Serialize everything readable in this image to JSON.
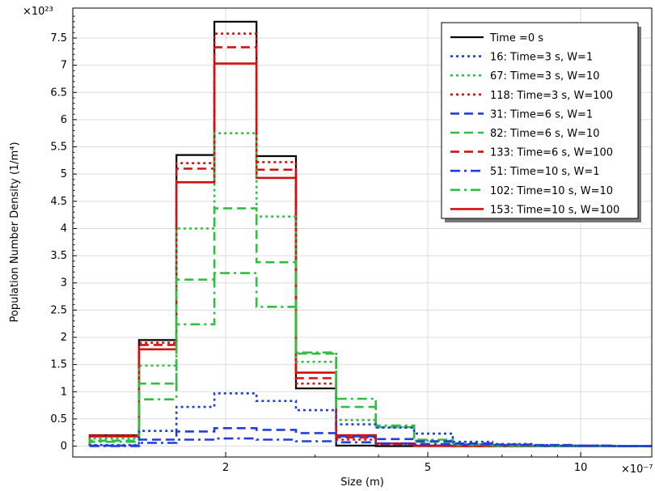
{
  "chart_data": {
    "type": "line",
    "step": true,
    "xlabel": "Size (m)",
    "ylabel": "Population Number Density (1/m⁴)",
    "x_scale": "log",
    "x_multiplier": "×10⁻⁷",
    "y_multiplier": "×10²³",
    "xlim": [
      1.0,
      13.8
    ],
    "ylim": [
      -0.2,
      8.05
    ],
    "x_ticks": [
      {
        "value": 2,
        "label": "2"
      },
      {
        "value": 5,
        "label": "5"
      },
      {
        "value": 10,
        "label": "10"
      }
    ],
    "y_ticks": [
      {
        "value": 0,
        "label": "0"
      },
      {
        "value": 0.5,
        "label": "0.5"
      },
      {
        "value": 1,
        "label": "1"
      },
      {
        "value": 1.5,
        "label": "1.5"
      },
      {
        "value": 2,
        "label": "2"
      },
      {
        "value": 2.5,
        "label": "2.5"
      },
      {
        "value": 3,
        "label": "3"
      },
      {
        "value": 3.5,
        "label": "3.5"
      },
      {
        "value": 4,
        "label": "4"
      },
      {
        "value": 4.5,
        "label": "4.5"
      },
      {
        "value": 5,
        "label": "5"
      },
      {
        "value": 5.5,
        "label": "5.5"
      },
      {
        "value": 6,
        "label": "6"
      },
      {
        "value": 6.5,
        "label": "6.5"
      },
      {
        "value": 7,
        "label": "7"
      },
      {
        "value": 7.5,
        "label": "7.5"
      }
    ],
    "grid": true,
    "legend_position": "top-right",
    "bin_edges": [
      1.08,
      1.35,
      1.6,
      1.9,
      2.3,
      2.75,
      3.3,
      3.95,
      4.7,
      5.6,
      6.7,
      8.0,
      9.6,
      11.5,
      13.8
    ],
    "series": [
      {
        "name": "Time =0 s",
        "color": "#000000",
        "dash": "solid",
        "values": [
          0.2,
          1.95,
          5.35,
          7.8,
          5.33,
          1.06,
          0.01,
          0.0,
          0.0,
          0.0,
          0.0,
          0.0,
          0.0,
          0.0
        ]
      },
      {
        "name": "16: Time=3 s, W=1",
        "color": "#1f3fdc",
        "dash": "dot",
        "values": [
          0.02,
          0.28,
          0.72,
          0.97,
          0.83,
          0.66,
          0.4,
          0.34,
          0.23,
          0.08,
          0.04,
          0.02,
          0.01,
          0.0
        ]
      },
      {
        "name": "67: Time=3 s, W=10",
        "color": "#2fbf40",
        "dash": "dot",
        "values": [
          0.14,
          1.48,
          4.0,
          5.75,
          4.22,
          1.55,
          0.48,
          0.35,
          0.1,
          0.03,
          0.01,
          0.0,
          0.0,
          0.0
        ]
      },
      {
        "name": "118: Time=3 s, W=100",
        "color": "#d40f0f",
        "dash": "dot",
        "values": [
          0.2,
          1.9,
          5.2,
          7.58,
          5.22,
          1.15,
          0.12,
          0.03,
          0.01,
          0.0,
          0.0,
          0.0,
          0.0,
          0.0
        ]
      },
      {
        "name": "31: Time=6 s, W=1",
        "color": "#1f3fdc",
        "dash": "dash",
        "values": [
          0.01,
          0.12,
          0.27,
          0.33,
          0.3,
          0.24,
          0.18,
          0.13,
          0.09,
          0.05,
          0.03,
          0.02,
          0.01,
          0.0
        ]
      },
      {
        "name": "82: Time=6 s, W=10",
        "color": "#2fbf40",
        "dash": "dash",
        "values": [
          0.1,
          1.15,
          3.06,
          4.37,
          3.38,
          1.7,
          0.72,
          0.35,
          0.08,
          0.02,
          0.01,
          0.0,
          0.0,
          0.0
        ]
      },
      {
        "name": "133: Time=6 s, W=100",
        "color": "#d40f0f",
        "dash": "dash",
        "values": [
          0.19,
          1.86,
          5.1,
          7.33,
          5.08,
          1.25,
          0.16,
          0.04,
          0.01,
          0.0,
          0.0,
          0.0,
          0.0,
          0.0
        ]
      },
      {
        "name": "51: Time=10 s, W=1",
        "color": "#1f3fdc",
        "dash": "dashdot",
        "values": [
          0.0,
          0.06,
          0.12,
          0.14,
          0.12,
          0.09,
          0.07,
          0.05,
          0.04,
          0.03,
          0.02,
          0.01,
          0.01,
          0.0
        ]
      },
      {
        "name": "102: Time=10 s, W=10",
        "color": "#2fbf40",
        "dash": "dashdot",
        "values": [
          0.08,
          0.86,
          2.24,
          3.18,
          2.56,
          1.72,
          0.87,
          0.38,
          0.12,
          0.03,
          0.01,
          0.0,
          0.0,
          0.0
        ]
      },
      {
        "name": "153: Time=10 s, W=100",
        "color": "#d40f0f",
        "dash": "solid",
        "values": [
          0.18,
          1.78,
          4.85,
          7.03,
          4.93,
          1.35,
          0.2,
          0.05,
          0.01,
          0.0,
          0.0,
          0.0,
          0.0,
          0.0
        ]
      }
    ]
  }
}
